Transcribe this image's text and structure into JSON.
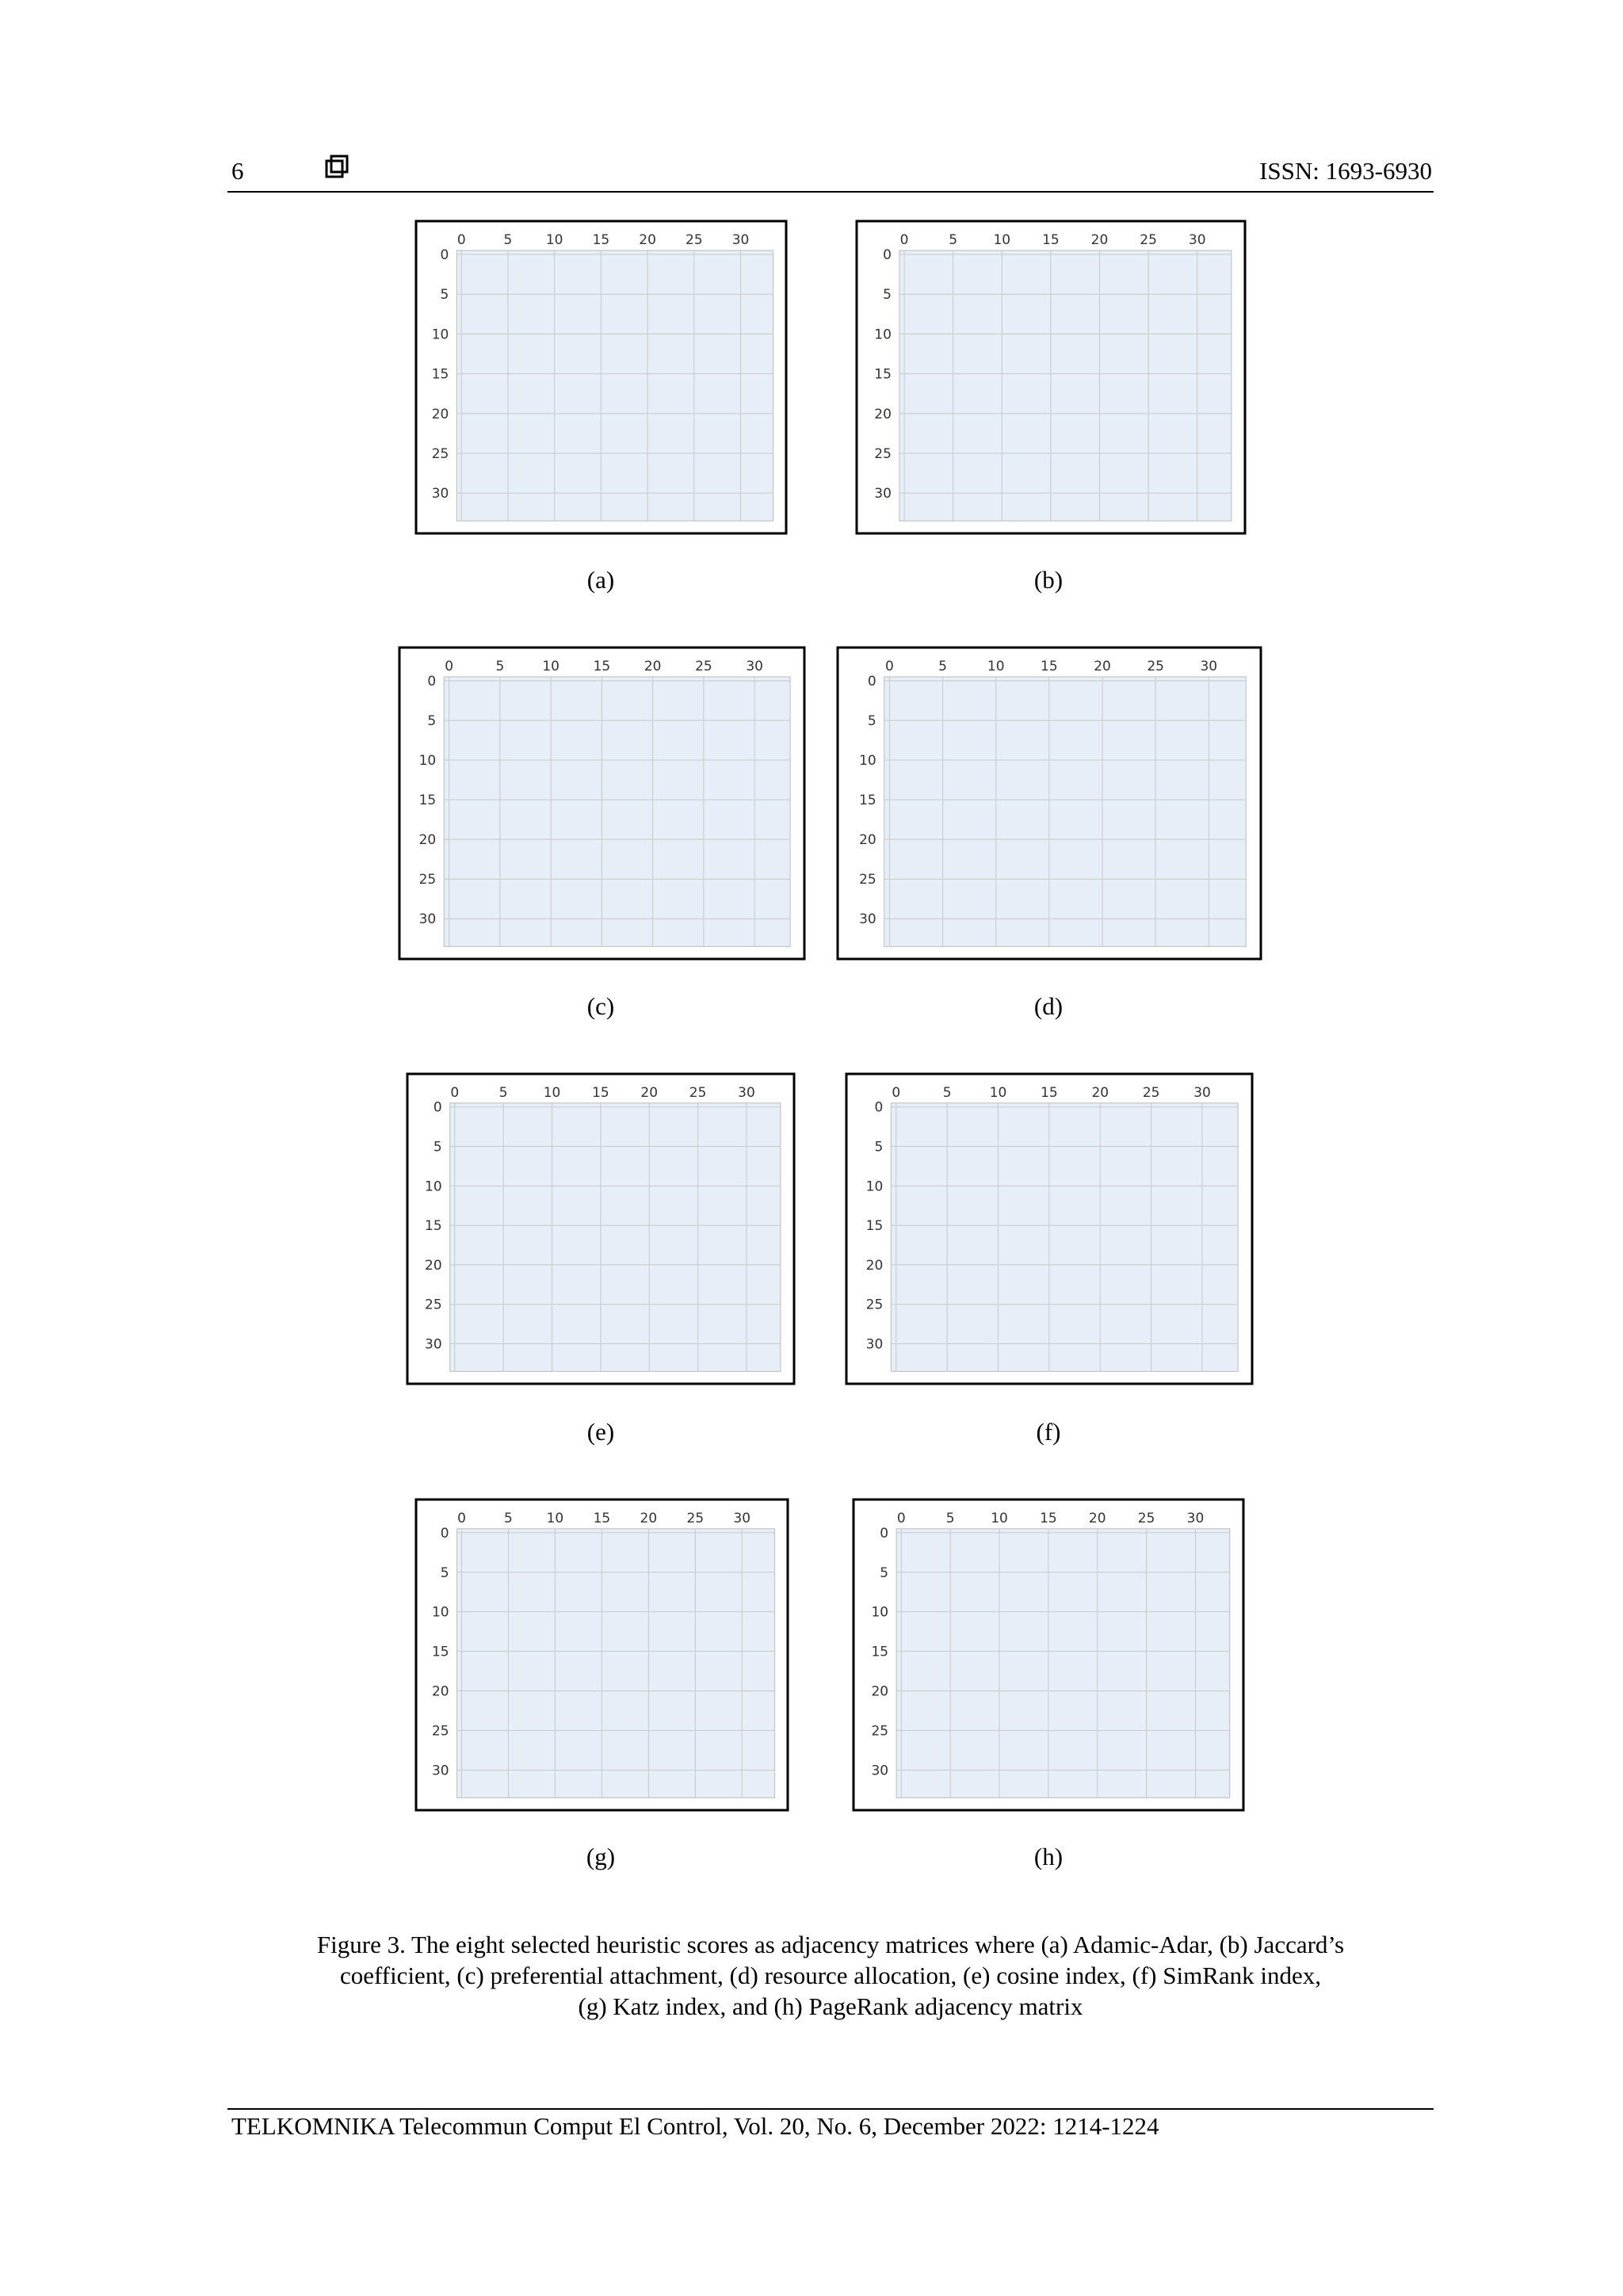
{
  "header": {
    "page": "6",
    "issn": "ISSN: 1693-6930"
  },
  "figure": {
    "ticks": [
      0,
      5,
      10,
      15,
      20,
      25,
      30
    ],
    "lim": [
      -0.5,
      33.5
    ],
    "panels": [
      {
        "label": "(a)"
      },
      {
        "label": "(b)"
      },
      {
        "label": "(c)"
      },
      {
        "label": "(d)"
      },
      {
        "label": "(e)"
      },
      {
        "label": "(f)"
      },
      {
        "label": "(g)"
      },
      {
        "label": "(h)"
      }
    ],
    "caption": [
      "Figure 3. The eight selected heuristic scores as adjacency matrices where (a) Adamic-Adar, (b) Jaccard’s",
      "coefficient, (c) preferential attachment, (d) resource allocation, (e) cosine index, (f) SimRank index,",
      "(g) Katz index, and (h) PageRank adjacency matrix"
    ]
  },
  "footer": "TELKOMNIKA Telecommun Comput El Control, Vol. 20, No. 6, December 2022: 1214-1224"
}
